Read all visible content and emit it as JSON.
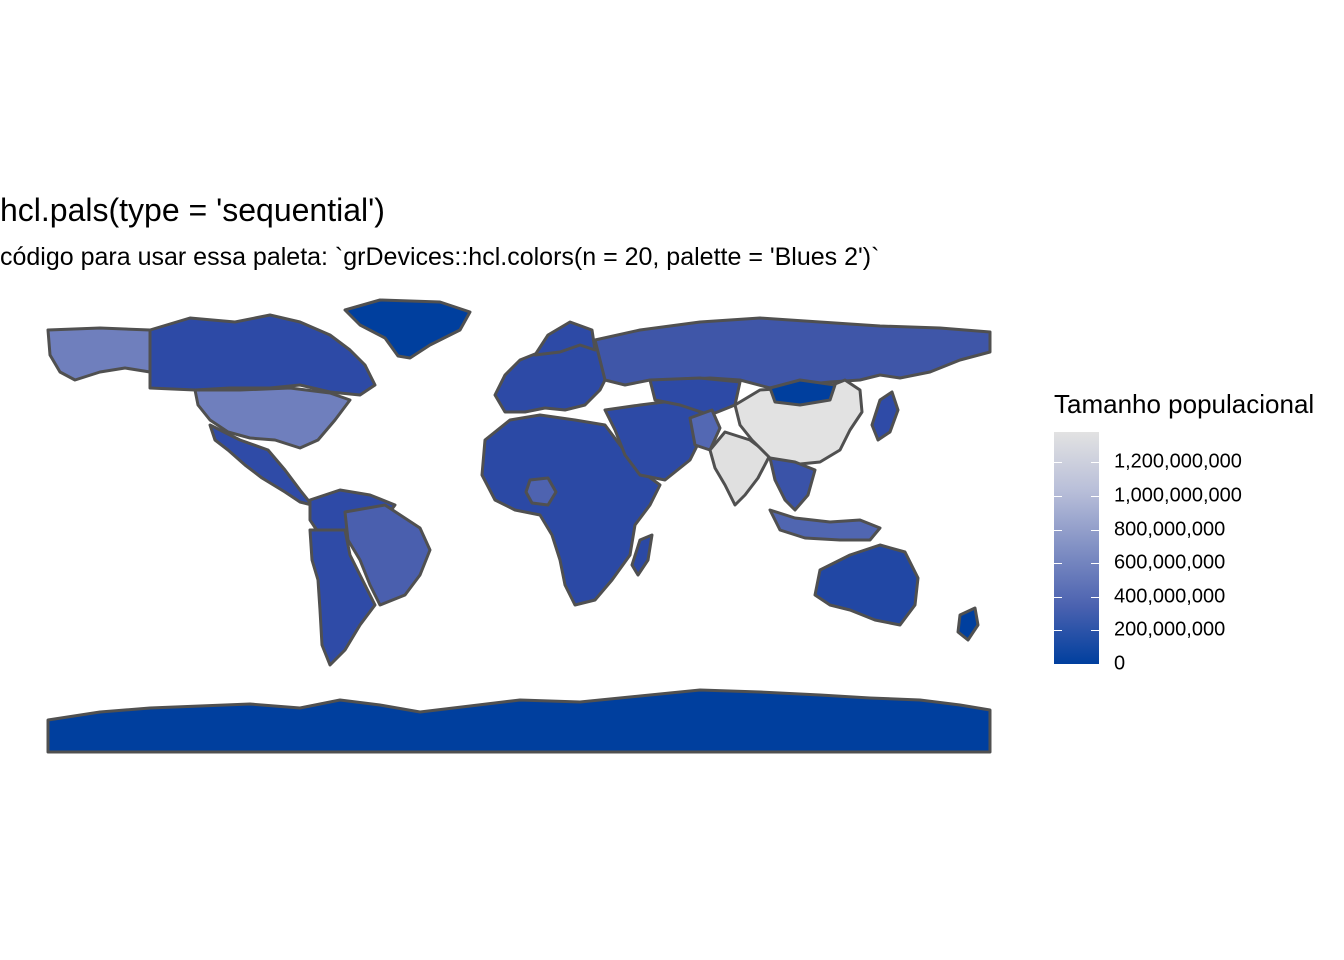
{
  "title": "hcl.pals(type = 'sequential')",
  "subtitle": "código para usar essa paleta: `grDevices::hcl.colors(n = 20, palette = 'Blues 2')`",
  "legend": {
    "title": "Tamanho populacional",
    "ticks": [
      {
        "label": "1,200,000,000",
        "value": 1200000000
      },
      {
        "label": "1,000,000,000",
        "value": 1000000000
      },
      {
        "label": "800,000,000",
        "value": 800000000
      },
      {
        "label": "600,000,000",
        "value": 600000000
      },
      {
        "label": "400,000,000",
        "value": 400000000
      },
      {
        "label": "200,000,000",
        "value": 200000000
      },
      {
        "label": "0",
        "value": 0
      }
    ],
    "range": [
      0,
      1380000000
    ],
    "palette": [
      "#003f9e",
      "#4b62b0",
      "#8190c4",
      "#b9bfd9",
      "#e2e2e2"
    ]
  },
  "map": {
    "border_color": "#505050",
    "regions": [
      {
        "name": "China",
        "color": "#e2e2e2"
      },
      {
        "name": "India",
        "color": "#e0e0e0"
      },
      {
        "name": "United States",
        "color": "#6f7fbd"
      },
      {
        "name": "Russia",
        "color": "#3f56a8"
      },
      {
        "name": "Brazil",
        "color": "#4a5fae"
      },
      {
        "name": "Indonesia",
        "color": "#5066b1"
      },
      {
        "name": "Antarctica",
        "color": "#003f9e"
      },
      {
        "name": "Greenland",
        "color": "#003f9e"
      }
    ]
  }
}
